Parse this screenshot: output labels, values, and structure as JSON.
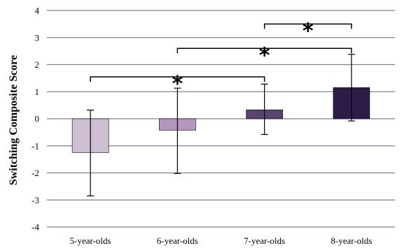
{
  "chart_data": {
    "type": "bar",
    "categories": [
      "5-year-olds",
      "6-year-olds",
      "7-year-olds",
      "8-year-olds"
    ],
    "values": [
      -1.25,
      -0.42,
      0.33,
      1.15
    ],
    "error_upper": [
      0.32,
      1.13,
      1.28,
      2.38
    ],
    "error_lower": [
      -2.85,
      -2.02,
      -0.58,
      -0.08
    ],
    "bar_colors": [
      "#cfbfd3",
      "#b496bf",
      "#59446f",
      "#2e1b47"
    ],
    "xlabel": "",
    "ylabel": "Switching Composite Score",
    "ylim": [
      -4,
      4
    ],
    "yticks": [
      "-4",
      "-3",
      "-2",
      "-1",
      "0",
      "1",
      "2",
      "3",
      "4"
    ],
    "grid": true,
    "gridline_color": "#8a7a92",
    "significance": [
      {
        "from": "5-year-olds",
        "to": "7-year-olds",
        "label": "*",
        "y": 1.55
      },
      {
        "from": "6-year-olds",
        "to": "8-year-olds",
        "label": "*",
        "y": 2.6
      },
      {
        "from": "7-year-olds",
        "to": "8-year-olds",
        "label": "*",
        "y": 3.5
      }
    ]
  }
}
